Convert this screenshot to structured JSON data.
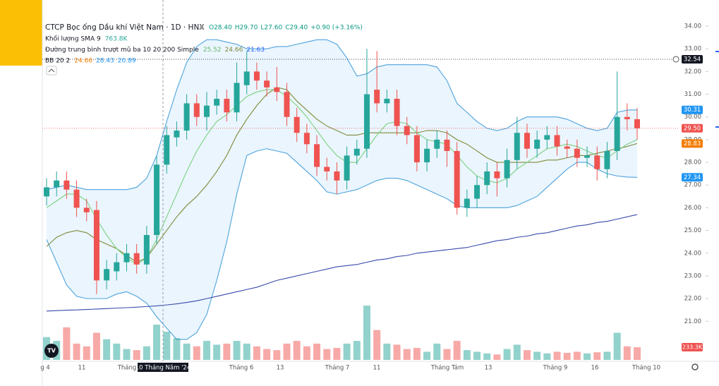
{
  "chart_data": {
    "type": "candlestick",
    "title": "CTCP Bọc ống Dầu khí Việt Nam · 1D · HNX",
    "ohlc_text": [
      "O28.40",
      "H29.70",
      "L27.60",
      "C29.40",
      "+0.90 (+3.16%)"
    ],
    "indicators": [
      {
        "name": "Khối lượng SMA 9",
        "values": [
          "763.8K"
        ],
        "colors": [
          "#26a69a"
        ]
      },
      {
        "name": "Đường trung bình trượt mũ ba 10 20 200 Simple",
        "values": [
          "25.52",
          "24.66",
          "21.63"
        ],
        "colors": [
          "#66bb6a",
          "#808a3a",
          "#2962ff"
        ]
      },
      {
        "name": "BB 20 2",
        "values": [
          "24.66",
          "28.43",
          "20.89"
        ],
        "colors": [
          "#f57c00",
          "#2196f3",
          "#2196f3"
        ]
      }
    ],
    "x_labels": [
      "g 4",
      "11",
      "Tháng",
      "Tháng 6",
      "13",
      "Tháng 7",
      "11",
      "Tháng Tám",
      "13",
      "Tháng 9",
      "16",
      "Tháng 10"
    ],
    "crosshair": {
      "date_label": "10 Tháng Năm '24"
    },
    "ylim": [
      19.3,
      35.15
    ],
    "yticks": [
      {
        "value": 21,
        "label": "21.00"
      },
      {
        "value": 22,
        "label": "22.00"
      },
      {
        "value": 23,
        "label": "23.00"
      },
      {
        "value": 24,
        "label": "24.00"
      },
      {
        "value": 25,
        "label": "25.00"
      },
      {
        "value": 26,
        "label": "26.00"
      },
      {
        "value": 27,
        "label": "27.00"
      },
      {
        "value": 28,
        "label": "28.00"
      },
      {
        "value": 29,
        "label": "29.00"
      },
      {
        "value": 30,
        "label": "30.00"
      },
      {
        "value": 31,
        "label": "31.00"
      },
      {
        "value": 32,
        "label": "32.00"
      },
      {
        "value": 33,
        "label": "33.00"
      },
      {
        "value": 34,
        "label": "34.00"
      }
    ],
    "grid": false,
    "up_color": "#26a69a",
    "down_color": "#ef5350",
    "open": [
      26.5,
      26.9,
      27.2,
      26.8,
      26.0,
      25.9,
      22.8,
      23.2,
      23.6,
      24.0,
      23.5,
      24.8,
      27.9,
      29.1,
      29.4,
      30.6,
      30.0,
      30.5,
      30.8,
      30.2,
      31.4,
      32.0,
      31.6,
      31.3,
      31.1,
      30.0,
      29.3,
      28.8,
      27.8,
      27.6,
      27.2,
      28.3,
      28.6,
      31.2,
      30.6,
      30.8,
      29.6,
      29.2,
      28.0,
      28.6,
      29.0,
      28.5,
      26.0,
      26.4,
      27.0,
      27.6,
      27.3,
      28.1,
      29.3,
      28.6,
      29.0,
      29.2,
      28.7,
      28.6,
      28.2,
      28.3,
      27.7,
      28.5,
      30.0,
      29.9
    ],
    "high": [
      27.3,
      27.6,
      27.6,
      27.2,
      26.4,
      26.3,
      23.7,
      24.0,
      24.4,
      24.4,
      25.2,
      28.3,
      29.6,
      29.8,
      31.0,
      31.0,
      31.1,
      31.2,
      31.2,
      32.4,
      32.9,
      32.4,
      32.0,
      32.2,
      31.5,
      30.4,
      29.7,
      29.2,
      28.2,
      28.0,
      28.7,
      29.0,
      33.0,
      32.9,
      31.2,
      31.2,
      30.0,
      29.6,
      29.0,
      29.4,
      29.4,
      28.9,
      26.8,
      27.4,
      28.0,
      28.0,
      28.6,
      30.0,
      29.7,
      29.4,
      29.6,
      29.6,
      29.0,
      29.0,
      28.7,
      28.7,
      28.9,
      32.0,
      30.6,
      30.4
    ],
    "low": [
      26.1,
      26.5,
      26.4,
      25.6,
      25.4,
      22.2,
      22.4,
      22.8,
      23.2,
      23.1,
      23.1,
      24.4,
      27.5,
      28.7,
      29.0,
      29.6,
      29.4,
      30.1,
      29.8,
      29.8,
      31.0,
      31.2,
      30.9,
      30.7,
      29.6,
      28.9,
      28.4,
      27.4,
      27.2,
      26.6,
      26.8,
      27.9,
      28.2,
      30.2,
      30.2,
      29.2,
      28.8,
      27.6,
      27.6,
      28.2,
      27.8,
      25.7,
      25.6,
      26.0,
      26.6,
      26.5,
      26.9,
      27.7,
      28.2,
      28.2,
      28.6,
      28.3,
      28.2,
      27.8,
      27.8,
      27.2,
      27.3,
      28.1,
      29.4,
      29.0
    ],
    "close": [
      26.9,
      27.2,
      26.8,
      26.0,
      25.8,
      22.8,
      23.3,
      23.6,
      24.0,
      23.5,
      24.8,
      27.9,
      29.2,
      29.4,
      30.6,
      30.0,
      30.5,
      30.8,
      30.2,
      31.5,
      32.0,
      31.6,
      31.3,
      31.1,
      30.0,
      29.3,
      28.8,
      27.8,
      27.6,
      27.2,
      28.3,
      28.6,
      31.0,
      30.6,
      30.8,
      29.6,
      29.2,
      28.0,
      28.6,
      29.0,
      28.5,
      26.0,
      26.4,
      27.0,
      27.6,
      27.3,
      28.1,
      29.3,
      28.6,
      29.0,
      29.2,
      28.7,
      28.6,
      28.2,
      28.3,
      27.7,
      28.5,
      30.0,
      29.9,
      29.5
    ],
    "volume": [
      420000,
      350000,
      600000,
      300000,
      250000,
      500000,
      380000,
      300000,
      200000,
      180000,
      250000,
      650000,
      520000,
      400000,
      300000,
      250000,
      350000,
      280000,
      300000,
      350000,
      300000,
      250000,
      200000,
      180000,
      300000,
      350000,
      250000,
      300000,
      200000,
      220000,
      300000,
      350000,
      1000000,
      550000,
      300000,
      280000,
      200000,
      220000,
      150000,
      300000,
      200000,
      350000,
      180000,
      150000,
      120000,
      100000,
      200000,
      280000,
      180000,
      150000,
      120000,
      150000,
      130000,
      150000,
      120000,
      140000,
      150000,
      500000,
      250000,
      233300
    ],
    "vlim": [
      0,
      1300000
    ],
    "band": {
      "fill": "#e3f2fd",
      "upper": [
        26.8,
        26.9,
        27.0,
        26.9,
        26.8,
        26.8,
        26.8,
        26.8,
        26.8,
        26.9,
        27.3,
        28.3,
        29.8,
        31.2,
        32.4,
        33.1,
        33.4,
        33.4,
        33.3,
        33.2,
        33.0,
        33.0,
        33.0,
        33.1,
        33.1,
        33.2,
        33.3,
        33.4,
        33.4,
        33.2,
        32.6,
        31.8,
        31.9,
        32.2,
        32.3,
        32.3,
        32.3,
        32.3,
        32.3,
        32.2,
        31.6,
        30.6,
        30.2,
        29.8,
        29.5,
        29.4,
        29.5,
        29.8,
        30.0,
        30.0,
        30.0,
        30.0,
        29.9,
        29.7,
        29.5,
        29.4,
        29.5,
        30.2,
        30.3,
        30.31
      ],
      "lower": [
        24.6,
        23.6,
        22.6,
        22.1,
        22.0,
        22.0,
        22.0,
        22.2,
        22.3,
        22.1,
        21.8,
        21.2,
        20.7,
        20.2,
        20.2,
        20.5,
        21.3,
        22.8,
        24.5,
        26.6,
        28.3,
        28.5,
        28.6,
        28.5,
        28.4,
        28.0,
        27.6,
        27.2,
        26.7,
        26.6,
        26.7,
        26.8,
        27.0,
        27.2,
        27.3,
        27.3,
        27.2,
        27.0,
        26.8,
        26.6,
        26.4,
        26.1,
        26.0,
        26.0,
        26.0,
        26.0,
        26.0,
        26.1,
        26.3,
        26.5,
        26.9,
        27.3,
        27.7,
        28.0,
        28.0,
        27.7,
        27.5,
        27.4,
        27.35,
        27.34
      ],
      "color": "#4ea3db"
    },
    "lines": [
      {
        "color": "#808a3a",
        "values": [
          24.3,
          24.7,
          24.9,
          25.0,
          24.9,
          24.6,
          24.4,
          24.2,
          23.9,
          23.6,
          23.8,
          24.4,
          25.0,
          25.6,
          26.1,
          26.5,
          27.0,
          27.6,
          28.3,
          29.2,
          29.9,
          30.5,
          31.0,
          31.3,
          31.2,
          30.7,
          30.3,
          29.9,
          29.6,
          29.4,
          29.2,
          29.2,
          29.3,
          29.3,
          29.3,
          29.3,
          29.3,
          29.3,
          29.4,
          29.4,
          29.3,
          29.0,
          28.8,
          28.5,
          28.2,
          28.0,
          28.0,
          28.0,
          28.0,
          28.0,
          28.1,
          28.1,
          28.2,
          28.3,
          28.3,
          28.4,
          28.5,
          28.6,
          28.7,
          28.83
        ]
      },
      {
        "color": "#7bd17f",
        "values": [
          26.0,
          26.3,
          26.6,
          26.6,
          26.3,
          25.5,
          24.8,
          24.2,
          23.8,
          23.5,
          23.8,
          24.6,
          25.6,
          26.6,
          27.6,
          28.5,
          29.2,
          29.8,
          30.1,
          30.5,
          30.9,
          31.1,
          31.2,
          31.2,
          30.9,
          30.5,
          30.0,
          29.4,
          28.8,
          28.3,
          28.0,
          28.0,
          28.6,
          29.2,
          29.7,
          29.8,
          29.7,
          29.3,
          29.0,
          28.9,
          28.8,
          28.3,
          27.8,
          27.4,
          27.2,
          27.1,
          27.3,
          27.7,
          28.0,
          28.3,
          28.6,
          28.7,
          28.8,
          28.7,
          28.5,
          28.3,
          28.2,
          28.5,
          28.8,
          29.0
        ]
      },
      {
        "color": "#3949ab",
        "values": [
          21.45,
          21.47,
          21.49,
          21.5,
          21.52,
          21.54,
          21.56,
          21.58,
          21.6,
          21.62,
          21.65,
          21.68,
          21.72,
          21.77,
          21.83,
          21.9,
          22.0,
          22.1,
          22.2,
          22.3,
          22.4,
          22.5,
          22.65,
          22.8,
          22.9,
          23.0,
          23.1,
          23.2,
          23.3,
          23.4,
          23.45,
          23.5,
          23.6,
          23.7,
          23.75,
          23.85,
          23.9,
          24.0,
          24.05,
          24.1,
          24.15,
          24.2,
          24.25,
          24.35,
          24.45,
          24.55,
          24.6,
          24.7,
          24.75,
          24.85,
          24.9,
          25.0,
          25.1,
          25.2,
          25.25,
          25.35,
          25.4,
          25.5,
          25.6,
          25.7
        ]
      }
    ],
    "tags": [
      {
        "value": 32.54,
        "label": "32.54",
        "color": "#131722",
        "dotted": true
      },
      {
        "value": 30.31,
        "label": "30.31",
        "color": "#2196f3"
      },
      {
        "value": 29.5,
        "label": "29.50",
        "color": "#ef5350",
        "dotted": true
      },
      {
        "value": 28.83,
        "label": "28.83",
        "color": "#f57c00"
      },
      {
        "value": 27.34,
        "label": "27.34",
        "color": "#2196f3"
      }
    ],
    "volume_tag": {
      "value": 233300,
      "label": "233.3K",
      "color": "#ef5350"
    }
  }
}
